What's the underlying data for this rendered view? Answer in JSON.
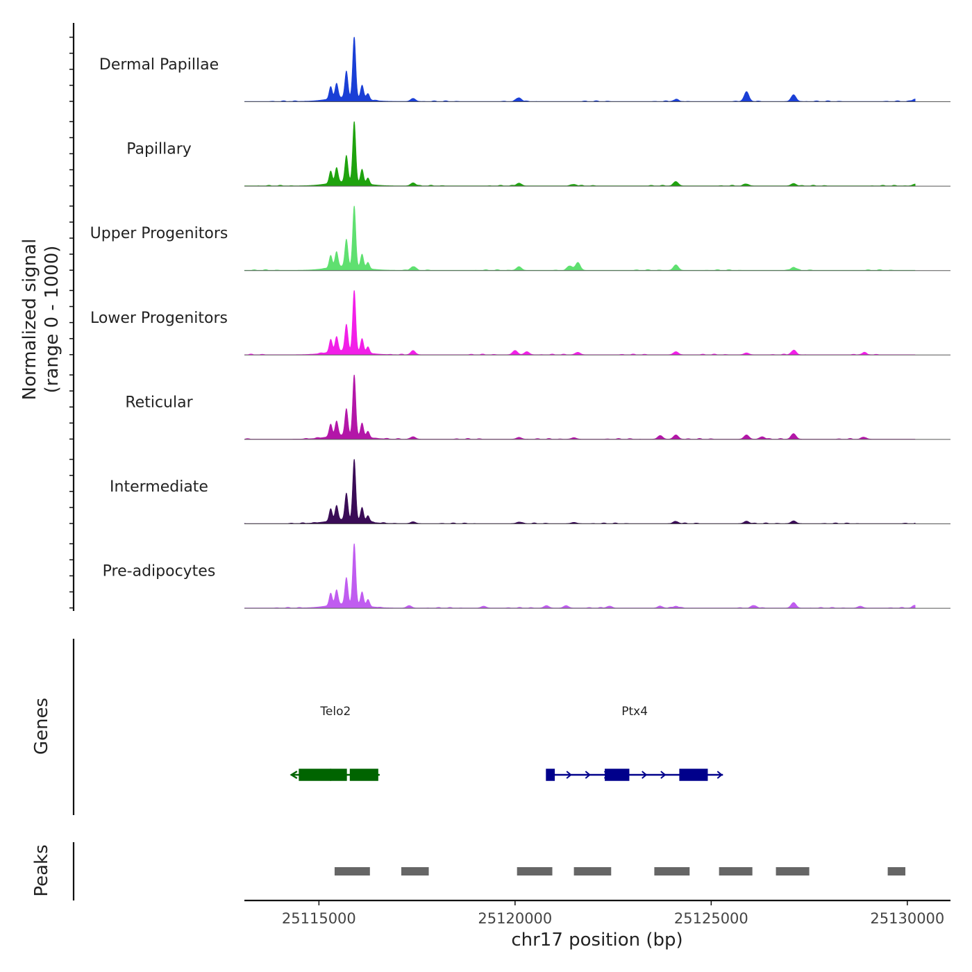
{
  "chart_data": {
    "type": "area",
    "y_axis_label_line1": "Normalized signal",
    "y_axis_label_line2": "(range 0 - 1000)",
    "genes_label": "Genes",
    "peaks_label": "Peaks",
    "xlabel": "chr17 position (bp)",
    "xlim": [
      25113100,
      25131100
    ],
    "x_ticks": [
      25115000,
      25120000,
      25125000,
      25130000
    ],
    "x_tick_labels": [
      "25115000",
      "25120000",
      "25125000",
      "25130000"
    ],
    "track_window": [
      25113100,
      25130200
    ],
    "ylim": [
      0,
      1000
    ],
    "tracks": [
      {
        "name": "Dermal Papillae",
        "color": "#1a3fd6",
        "peak_value": 1000,
        "minor": [
          [
            25117400,
            50
          ],
          [
            25120100,
            60
          ],
          [
            25124100,
            30
          ],
          [
            25125900,
            150
          ],
          [
            25127100,
            110
          ],
          [
            25130200,
            40
          ]
        ]
      },
      {
        "name": "Papillary",
        "color": "#1fa30e",
        "peak_value": 1000,
        "minor": [
          [
            25117400,
            50
          ],
          [
            25120100,
            45
          ],
          [
            25121500,
            25
          ],
          [
            25124100,
            70
          ],
          [
            25125900,
            30
          ],
          [
            25127100,
            40
          ],
          [
            25130200,
            30
          ]
        ]
      },
      {
        "name": "Upper Progenitors",
        "color": "#5fe070",
        "peak_value": 1000,
        "minor": [
          [
            25117400,
            60
          ],
          [
            25120100,
            60
          ],
          [
            25121400,
            70
          ],
          [
            25121600,
            120
          ],
          [
            25124100,
            90
          ],
          [
            25127100,
            50
          ]
        ]
      },
      {
        "name": "Lower Progenitors",
        "color": "#f21fe8",
        "peak_value": 1000,
        "minor": [
          [
            25117400,
            60
          ],
          [
            25120000,
            70
          ],
          [
            25120300,
            50
          ],
          [
            25121600,
            40
          ],
          [
            25124100,
            50
          ],
          [
            25125900,
            30
          ],
          [
            25127100,
            70
          ],
          [
            25128900,
            30
          ]
        ]
      },
      {
        "name": "Reticular",
        "color": "#b316a8",
        "peak_value": 1000,
        "minor": [
          [
            25117400,
            40
          ],
          [
            25120100,
            30
          ],
          [
            25121500,
            25
          ],
          [
            25123700,
            60
          ],
          [
            25124100,
            70
          ],
          [
            25125900,
            70
          ],
          [
            25126300,
            40
          ],
          [
            25127100,
            90
          ],
          [
            25128900,
            30
          ]
        ]
      },
      {
        "name": "Intermediate",
        "color": "#3a0c57",
        "peak_value": 1000,
        "minor": [
          [
            25117400,
            30
          ],
          [
            25120100,
            25
          ],
          [
            25121500,
            20
          ],
          [
            25124100,
            35
          ],
          [
            25125900,
            40
          ],
          [
            25127100,
            45
          ]
        ]
      },
      {
        "name": "Pre-adipocytes",
        "color": "#c05cf0",
        "peak_value": 1000,
        "minor": [
          [
            25117300,
            40
          ],
          [
            25119200,
            30
          ],
          [
            25120800,
            40
          ],
          [
            25121300,
            40
          ],
          [
            25122400,
            30
          ],
          [
            25123700,
            30
          ],
          [
            25124100,
            30
          ],
          [
            25126100,
            40
          ],
          [
            25127100,
            90
          ],
          [
            25128800,
            30
          ],
          [
            25130200,
            40
          ]
        ]
      }
    ],
    "main_peaks": [
      [
        25115300,
        200
      ],
      [
        25115450,
        240
      ],
      [
        25115700,
        430
      ],
      [
        25115900,
        1000
      ],
      [
        25116100,
        220
      ],
      [
        25116250,
        100
      ]
    ],
    "genes": [
      {
        "name": "Telo2",
        "strand": "-",
        "color": "#006400",
        "start": 25114300,
        "end": 25116550,
        "exons": [
          [
            25114500,
            25115300
          ],
          [
            25115300,
            25115700
          ],
          [
            25115800,
            25116500
          ]
        ]
      },
      {
        "name": "Ptx4",
        "strand": "+",
        "color": "#00008b",
        "start": 25120800,
        "end": 25125300,
        "exons": [
          [
            25120800,
            25121000
          ],
          [
            25122300,
            25122900
          ],
          [
            25124200,
            25124900
          ]
        ]
      }
    ],
    "peaks": [
      [
        25115400,
        25116300
      ],
      [
        25117100,
        25117800
      ],
      [
        25120050,
        25120950
      ],
      [
        25121500,
        25122450
      ],
      [
        25123550,
        25124450
      ],
      [
        25125200,
        25126050
      ],
      [
        25126650,
        25127500
      ],
      [
        25129500,
        25129950
      ]
    ],
    "peak_color": "#666666"
  }
}
